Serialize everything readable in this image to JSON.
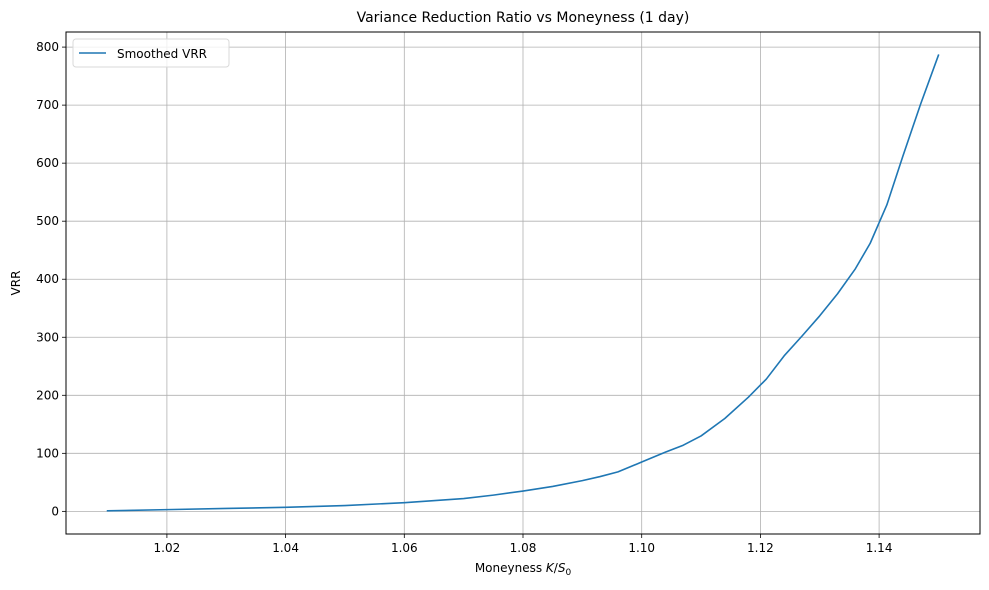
{
  "chart_data": {
    "type": "line",
    "title": "Variance Reduction Ratio vs Moneyness (1 day)",
    "xlabel_prefix": "Moneyness ",
    "xlabel_math_K": "K",
    "xlabel_math_slash": "/",
    "xlabel_math_S": "S",
    "xlabel_math_sub": "0",
    "ylabel": "VRR",
    "xlim": [
      1.003,
      1.157
    ],
    "ylim": [
      -39,
      826
    ],
    "grid": true,
    "legend_position": "top-left",
    "x_ticks": [
      1.02,
      1.04,
      1.06,
      1.08,
      1.1,
      1.12,
      1.14
    ],
    "x_tick_labels": [
      "1.02",
      "1.04",
      "1.06",
      "1.08",
      "1.10",
      "1.12",
      "1.14"
    ],
    "y_ticks": [
      0,
      100,
      200,
      300,
      400,
      500,
      600,
      700,
      800
    ],
    "y_tick_labels": [
      "0",
      "100",
      "200",
      "300",
      "400",
      "500",
      "600",
      "700",
      "800"
    ],
    "series": [
      {
        "name": "Smoothed VRR",
        "color": "#1f77b4",
        "x": [
          1.01,
          1.02,
          1.03,
          1.04,
          1.05,
          1.06,
          1.07,
          1.075,
          1.08,
          1.085,
          1.09,
          1.093,
          1.096,
          1.1,
          1.104,
          1.107,
          1.11,
          1.114,
          1.118,
          1.121,
          1.124,
          1.127,
          1.13,
          1.133,
          1.136,
          1.1385,
          1.1413,
          1.144,
          1.147,
          1.15
        ],
        "y": [
          1,
          3,
          5,
          7,
          10,
          15,
          22,
          28,
          35,
          43,
          53,
          60,
          68,
          85,
          102,
          114,
          130,
          160,
          197,
          228,
          268,
          302,
          337,
          375,
          418,
          462,
          528,
          612,
          702,
          786
        ]
      }
    ]
  }
}
